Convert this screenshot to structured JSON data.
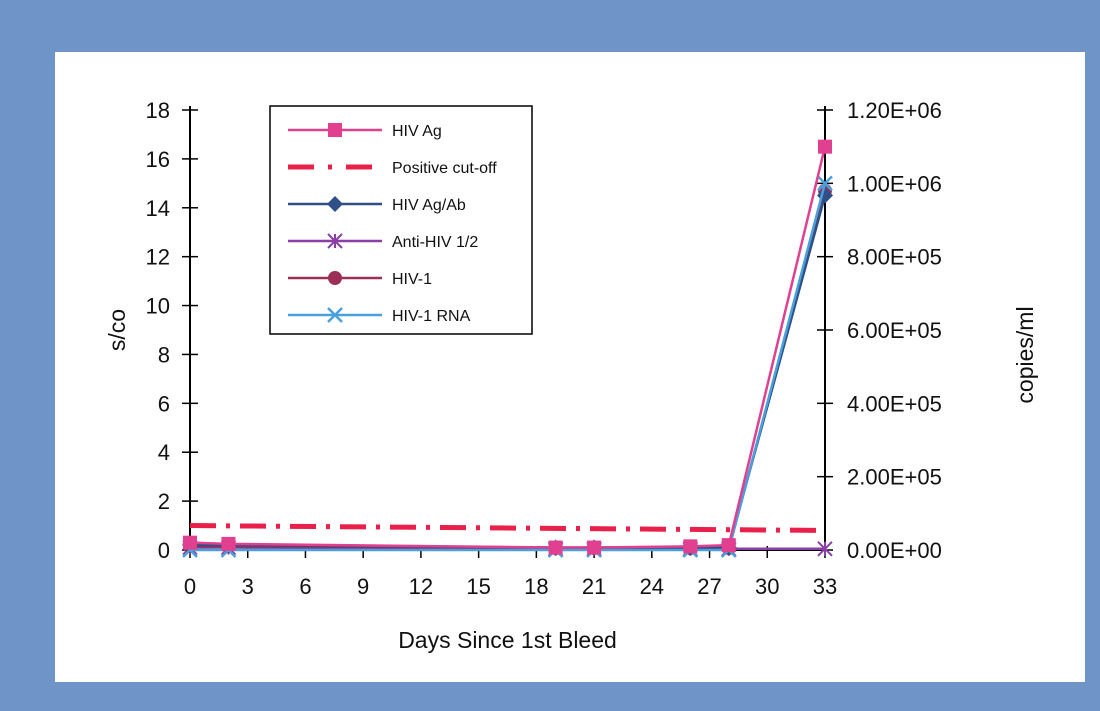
{
  "chart_data": {
    "type": "line",
    "xlabel": "Days Since 1st Bleed",
    "ylabel": "s/co",
    "y2label": "copies/ml",
    "x_ticks": [
      0,
      3,
      6,
      9,
      12,
      15,
      18,
      21,
      24,
      27,
      30,
      33
    ],
    "xlim": [
      0,
      33
    ],
    "y_ticks": [
      0,
      2,
      4,
      6,
      8,
      10,
      12,
      14,
      16,
      18
    ],
    "ylim": [
      0,
      18
    ],
    "y2_ticks": [
      0,
      200000,
      400000,
      600000,
      800000,
      1000000,
      1200000
    ],
    "y2_tick_labels": [
      "0.00E+00",
      "2.00E+05",
      "4.00E+05",
      "6.00E+05",
      "8.00E+05",
      "1.00E+06",
      "1.20E+06"
    ],
    "y2lim": [
      0,
      1200000
    ],
    "legend_position": "top-left",
    "series": [
      {
        "name": "HIV Ag",
        "color": "#e0408f",
        "marker": "square",
        "axis": "left",
        "x": [
          0,
          2,
          19,
          21,
          26,
          28,
          33
        ],
        "y": [
          0.3,
          0.25,
          0.1,
          0.1,
          0.15,
          0.2,
          16.5
        ]
      },
      {
        "name": "Positive cut-off",
        "color": "#e8204a",
        "marker": "none",
        "dash": "dashdot",
        "axis": "left",
        "x": [
          0,
          33
        ],
        "y": [
          1.0,
          0.8
        ]
      },
      {
        "name": "HIV Ag/Ab",
        "color": "#2f4f86",
        "marker": "diamond",
        "axis": "left",
        "x": [
          0,
          2,
          19,
          21,
          26,
          28,
          33
        ],
        "y": [
          0.2,
          0.2,
          0.1,
          0.1,
          0.1,
          0.1,
          14.5
        ]
      },
      {
        "name": "Anti-HIV 1/2",
        "color": "#8a3fa6",
        "marker": "asterisk",
        "axis": "left",
        "x": [
          0,
          2,
          19,
          21,
          26,
          28,
          33
        ],
        "y": [
          0.1,
          0.1,
          0.05,
          0.05,
          0.05,
          0.05,
          0.05
        ]
      },
      {
        "name": "HIV-1",
        "color": "#9c2f55",
        "marker": "circle",
        "axis": "left",
        "x": [
          0,
          2,
          19,
          21,
          26,
          28,
          33
        ],
        "y": [
          0.15,
          0.15,
          0.08,
          0.08,
          0.08,
          0.08,
          14.7
        ]
      },
      {
        "name": "HIV-1 RNA",
        "color": "#4aa0dc",
        "marker": "x",
        "axis": "right",
        "x": [
          0,
          2,
          19,
          21,
          26,
          28,
          33
        ],
        "y": [
          0,
          0,
          0,
          0,
          0,
          0,
          1000000
        ]
      }
    ]
  }
}
